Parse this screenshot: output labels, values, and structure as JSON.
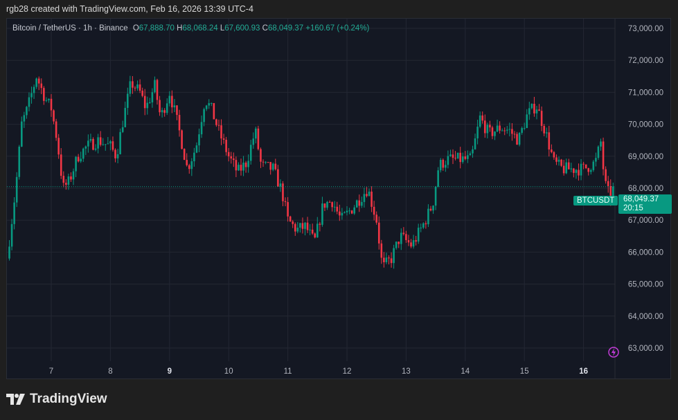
{
  "credit": "rgb28 created with TradingView.com, Feb 16, 2026 13:39 UTC-4",
  "legend": {
    "symbol": "Bitcoin / TetherUS · 1h · Binance",
    "o_label": "O",
    "o": "67,888.70",
    "h_label": "H",
    "h": "68,068.24",
    "l_label": "L",
    "l": "67,600.93",
    "c_label": "C",
    "c": "68,049.37",
    "change": "+160.67 (+0.24%)"
  },
  "price_tag": {
    "symbol": "BTCUSDT",
    "price": "68,049.37",
    "countdown": "20:15"
  },
  "logo_text": "TradingView",
  "colors": {
    "up": "#089981",
    "down": "#f23645",
    "background": "#141823",
    "grid": "#232733"
  },
  "chart_data": {
    "type": "candlestick",
    "interval": "1h",
    "y_ticks": [
      "73,000.00",
      "72,000.00",
      "71,000.00",
      "70,000.00",
      "69,000.00",
      "68,000.00",
      "67,000.00",
      "66,000.00",
      "65,000.00",
      "64,000.00",
      "63,000.00"
    ],
    "x_ticks": [
      "7",
      "8",
      "9",
      "10",
      "11",
      "12",
      "13",
      "14",
      "15",
      "16"
    ],
    "bold_x_ticks": [
      "9",
      "16"
    ],
    "ylim": [
      62500,
      73300
    ],
    "xlim_days": [
      6.25,
      16.55
    ],
    "grid": true,
    "last_price": 68049.37,
    "price_path": [
      [
        6.25,
        65800
      ],
      [
        6.3,
        66500
      ],
      [
        6.4,
        68000
      ],
      [
        6.5,
        70000
      ],
      [
        6.6,
        70500
      ],
      [
        6.75,
        71500
      ],
      [
        6.9,
        70800
      ],
      [
        7.0,
        70500
      ],
      [
        7.1,
        69500
      ],
      [
        7.2,
        68000
      ],
      [
        7.3,
        68200
      ],
      [
        7.45,
        69000
      ],
      [
        7.6,
        69300
      ],
      [
        7.8,
        69500
      ],
      [
        8.0,
        69300
      ],
      [
        8.1,
        69000
      ],
      [
        8.2,
        70000
      ],
      [
        8.35,
        71300
      ],
      [
        8.5,
        71000
      ],
      [
        8.6,
        70500
      ],
      [
        8.75,
        71200
      ],
      [
        8.85,
        70200
      ],
      [
        9.0,
        71000
      ],
      [
        9.1,
        70300
      ],
      [
        9.2,
        69500
      ],
      [
        9.3,
        68600
      ],
      [
        9.45,
        69300
      ],
      [
        9.6,
        70800
      ],
      [
        9.7,
        70500
      ],
      [
        9.85,
        69700
      ],
      [
        10.0,
        69000
      ],
      [
        10.15,
        68500
      ],
      [
        10.3,
        68800
      ],
      [
        10.45,
        69800
      ],
      [
        10.55,
        68700
      ],
      [
        10.75,
        68600
      ],
      [
        10.9,
        67900
      ],
      [
        11.0,
        67000
      ],
      [
        11.15,
        66700
      ],
      [
        11.3,
        66800
      ],
      [
        11.45,
        66300
      ],
      [
        11.6,
        67500
      ],
      [
        11.75,
        67600
      ],
      [
        11.9,
        67000
      ],
      [
        12.1,
        67400
      ],
      [
        12.35,
        68000
      ],
      [
        12.5,
        67000
      ],
      [
        12.6,
        65500
      ],
      [
        12.75,
        65800
      ],
      [
        12.9,
        66500
      ],
      [
        13.1,
        66200
      ],
      [
        13.3,
        66900
      ],
      [
        13.45,
        67500
      ],
      [
        13.55,
        68700
      ],
      [
        13.7,
        68900
      ],
      [
        13.9,
        68900
      ],
      [
        14.1,
        68900
      ],
      [
        14.25,
        70200
      ],
      [
        14.4,
        69700
      ],
      [
        14.6,
        69900
      ],
      [
        14.75,
        69800
      ],
      [
        14.9,
        69500
      ],
      [
        15.05,
        70300
      ],
      [
        15.2,
        70600
      ],
      [
        15.35,
        69800
      ],
      [
        15.5,
        68800
      ],
      [
        15.65,
        68600
      ],
      [
        15.8,
        68600
      ],
      [
        16.0,
        68600
      ],
      [
        16.2,
        68800
      ],
      [
        16.3,
        69500
      ],
      [
        16.35,
        68200
      ],
      [
        16.45,
        67700
      ],
      [
        16.5,
        68049.37
      ]
    ]
  }
}
